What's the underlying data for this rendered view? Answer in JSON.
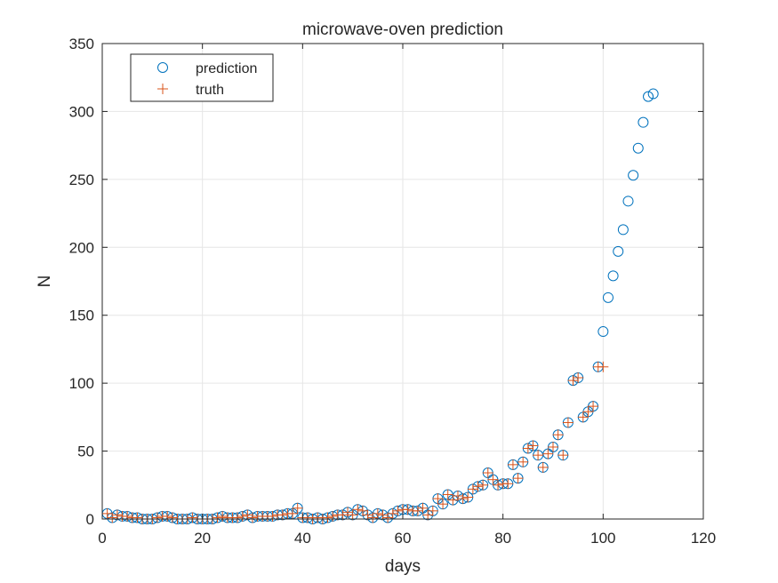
{
  "chart_data": {
    "type": "scatter",
    "title": "microwave-oven prediction",
    "xlabel": "days",
    "ylabel": "N",
    "xlim": [
      0,
      120
    ],
    "ylim": [
      0,
      350
    ],
    "xticks": [
      "0",
      "20",
      "40",
      "60",
      "80",
      "100",
      "120"
    ],
    "yticks": [
      "0",
      "50",
      "100",
      "150",
      "200",
      "250",
      "300",
      "350"
    ],
    "grid": true,
    "legend": {
      "position": "top-left",
      "entries": [
        "prediction",
        "truth"
      ]
    },
    "colors": {
      "prediction": "#0072BD",
      "truth": "#D95319",
      "grid": "#e6e6e6",
      "axis": "#262626"
    },
    "series": [
      {
        "name": "prediction",
        "marker": "circle",
        "x": [
          1,
          2,
          3,
          4,
          5,
          6,
          7,
          8,
          9,
          10,
          11,
          12,
          13,
          14,
          15,
          16,
          17,
          18,
          19,
          20,
          21,
          22,
          23,
          24,
          25,
          26,
          27,
          28,
          29,
          30,
          31,
          32,
          33,
          34,
          35,
          36,
          37,
          38,
          39,
          40,
          41,
          42,
          43,
          44,
          45,
          46,
          47,
          48,
          49,
          50,
          51,
          52,
          53,
          54,
          55,
          56,
          57,
          58,
          59,
          60,
          61,
          62,
          63,
          64,
          65,
          66,
          67,
          68,
          69,
          70,
          71,
          72,
          73,
          74,
          75,
          76,
          77,
          78,
          79,
          80,
          81,
          82,
          83,
          84,
          85,
          86,
          87,
          88,
          89,
          90,
          91,
          92,
          93,
          94,
          95,
          96,
          97,
          98,
          99,
          100,
          101,
          102,
          103,
          104,
          105,
          106,
          107,
          108,
          109,
          110
        ],
        "y": [
          4,
          1,
          3,
          2,
          2,
          1,
          1,
          0,
          0,
          0,
          1,
          2,
          2,
          1,
          0,
          0,
          0,
          1,
          0,
          0,
          0,
          0,
          1,
          2,
          1,
          1,
          1,
          2,
          3,
          1,
          2,
          2,
          2,
          2,
          3,
          3,
          4,
          4,
          8,
          1,
          1,
          0,
          1,
          0,
          1,
          2,
          3,
          3,
          5,
          3,
          7,
          6,
          3,
          1,
          4,
          3,
          1,
          4,
          6,
          7,
          7,
          6,
          6,
          8,
          3,
          6,
          15,
          11,
          18,
          14,
          17,
          15,
          16,
          22,
          24,
          25,
          34,
          29,
          25,
          26,
          26,
          40,
          30,
          42,
          52,
          54,
          47,
          38,
          48,
          53,
          62,
          47,
          71,
          102,
          104,
          75,
          79,
          83,
          112,
          138,
          163,
          179,
          197,
          213,
          234,
          253,
          273,
          292,
          311,
          313
        ]
      },
      {
        "name": "truth",
        "marker": "plus",
        "x": [
          1,
          2,
          3,
          4,
          5,
          6,
          7,
          8,
          9,
          10,
          11,
          12,
          13,
          14,
          15,
          16,
          17,
          18,
          19,
          20,
          21,
          22,
          23,
          24,
          25,
          26,
          27,
          28,
          29,
          30,
          31,
          32,
          33,
          34,
          35,
          36,
          37,
          38,
          39,
          40,
          41,
          42,
          43,
          44,
          45,
          46,
          47,
          48,
          49,
          50,
          51,
          52,
          53,
          54,
          55,
          56,
          57,
          58,
          59,
          60,
          61,
          62,
          63,
          64,
          65,
          66,
          67,
          68,
          69,
          70,
          71,
          72,
          73,
          74,
          75,
          76,
          77,
          78,
          79,
          80,
          81,
          82,
          83,
          84,
          85,
          86,
          87,
          88,
          89,
          90,
          91,
          92,
          93,
          94,
          95,
          96,
          97,
          98,
          99,
          100
        ],
        "y": [
          4,
          1,
          3,
          2,
          2,
          1,
          1,
          0,
          0,
          0,
          1,
          2,
          2,
          1,
          0,
          0,
          0,
          1,
          0,
          0,
          0,
          0,
          1,
          2,
          1,
          1,
          1,
          2,
          3,
          1,
          2,
          2,
          2,
          2,
          3,
          3,
          4,
          4,
          8,
          1,
          1,
          0,
          1,
          0,
          1,
          2,
          3,
          3,
          5,
          3,
          7,
          6,
          3,
          1,
          4,
          3,
          1,
          4,
          6,
          7,
          7,
          6,
          6,
          8,
          3,
          6,
          15,
          11,
          18,
          14,
          17,
          15,
          16,
          22,
          24,
          25,
          34,
          29,
          25,
          26,
          26,
          40,
          30,
          42,
          52,
          54,
          47,
          38,
          48,
          53,
          62,
          47,
          71,
          102,
          104,
          75,
          79,
          83,
          112,
          112
        ]
      }
    ]
  }
}
